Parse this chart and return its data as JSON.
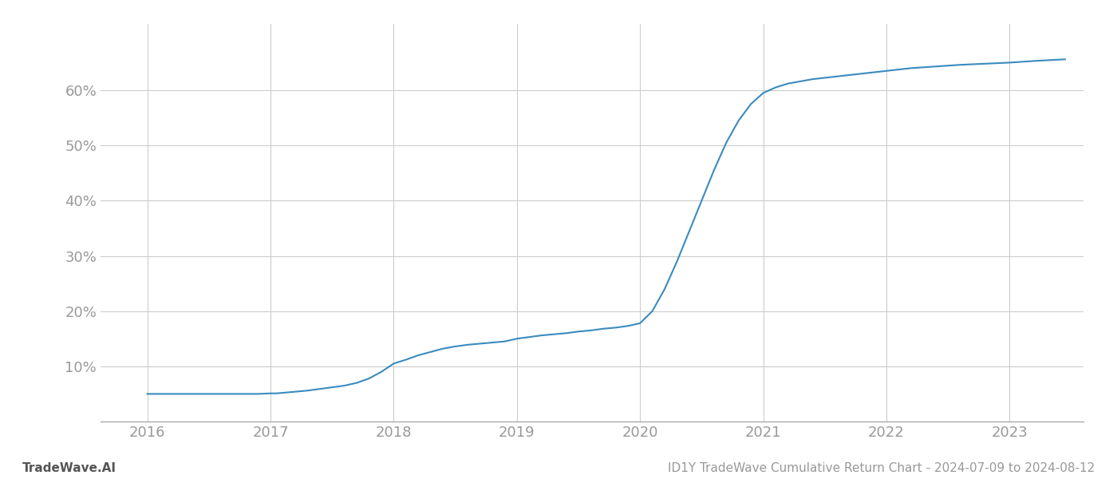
{
  "x_values": [
    2016.0,
    2016.1,
    2016.2,
    2016.3,
    2016.4,
    2016.5,
    2016.6,
    2016.7,
    2016.8,
    2016.9,
    2017.0,
    2017.05,
    2017.1,
    2017.15,
    2017.2,
    2017.3,
    2017.4,
    2017.5,
    2017.6,
    2017.7,
    2017.8,
    2017.9,
    2018.0,
    2018.1,
    2018.2,
    2018.3,
    2018.4,
    2018.5,
    2018.6,
    2018.7,
    2018.8,
    2018.9,
    2019.0,
    2019.1,
    2019.2,
    2019.3,
    2019.4,
    2019.5,
    2019.6,
    2019.7,
    2019.8,
    2019.9,
    2020.0,
    2020.1,
    2020.2,
    2020.3,
    2020.4,
    2020.5,
    2020.6,
    2020.7,
    2020.8,
    2020.9,
    2021.0,
    2021.1,
    2021.2,
    2021.4,
    2021.6,
    2021.8,
    2022.0,
    2022.2,
    2022.4,
    2022.6,
    2022.8,
    2023.0,
    2023.2,
    2023.45
  ],
  "y_values": [
    5.0,
    5.0,
    5.0,
    5.0,
    5.0,
    5.0,
    5.0,
    5.0,
    5.0,
    5.0,
    5.1,
    5.1,
    5.2,
    5.3,
    5.4,
    5.6,
    5.9,
    6.2,
    6.5,
    7.0,
    7.8,
    9.0,
    10.5,
    11.2,
    12.0,
    12.6,
    13.2,
    13.6,
    13.9,
    14.1,
    14.3,
    14.5,
    15.0,
    15.3,
    15.6,
    15.8,
    16.0,
    16.3,
    16.5,
    16.8,
    17.0,
    17.3,
    17.8,
    20.0,
    24.0,
    29.0,
    34.5,
    40.0,
    45.5,
    50.5,
    54.5,
    57.5,
    59.5,
    60.5,
    61.2,
    62.0,
    62.5,
    63.0,
    63.5,
    64.0,
    64.3,
    64.6,
    64.8,
    65.0,
    65.3,
    65.6
  ],
  "line_color": "#3a8bbf",
  "line_width": 1.5,
  "footer_left": "TradeWave.AI",
  "footer_right": "ID1Y TradeWave Cumulative Return Chart - 2024-07-09 to 2024-08-12",
  "xlim": [
    2015.62,
    2023.6
  ],
  "ylim": [
    0,
    72
  ],
  "yticks": [
    10,
    20,
    30,
    40,
    50,
    60
  ],
  "xticks": [
    2016,
    2017,
    2018,
    2019,
    2020,
    2021,
    2022,
    2023
  ],
  "grid_color": "#cccccc",
  "background_color": "#ffffff",
  "footer_fontsize": 11,
  "tick_fontsize": 13,
  "tick_color": "#999999",
  "footer_color": "#555555"
}
